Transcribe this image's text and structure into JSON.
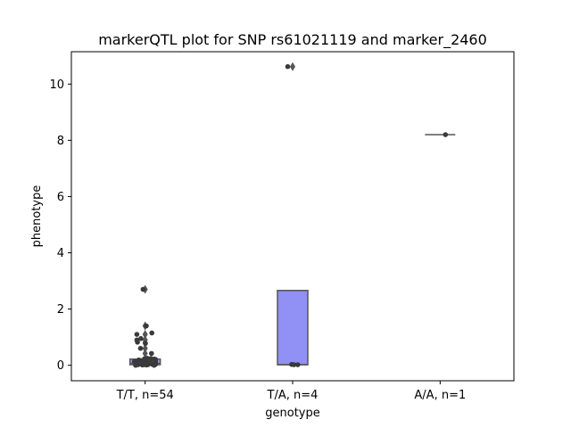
{
  "chart_data": {
    "type": "box",
    "title": "markerQTL plot for SNP rs61021119 and marker_2460",
    "xlabel": "genotype",
    "ylabel": "phenotype",
    "ylim": [
      -0.55,
      11.15
    ],
    "yticks": [
      0,
      2,
      4,
      6,
      8,
      10
    ],
    "grid": false,
    "legend": "none",
    "categories": [
      "T/T, n=54",
      "T/A, n=4",
      "A/A, n=1"
    ],
    "box_color": "#9090f5",
    "point_color": "#3a3a3a",
    "line_color": "#555555",
    "boxes": [
      {
        "q1": 0.02,
        "median": 0.07,
        "q3": 0.22,
        "whisker_low": 0.0,
        "whisker_high": 0.25,
        "outliers": [
          0.42,
          0.6,
          0.8,
          0.9,
          1.1,
          1.4,
          2.7
        ]
      },
      {
        "q1": 0.02,
        "median": 0.02,
        "q3": 2.66,
        "whisker_low": 0.02,
        "whisker_high": 2.66,
        "outliers": [
          10.62
        ]
      },
      {
        "q1": 8.2,
        "median": 8.2,
        "q3": 8.2,
        "whisker_low": 8.2,
        "whisker_high": 8.2,
        "outliers": []
      }
    ],
    "points": [
      {
        "values": [
          0.0,
          0.0,
          0.01,
          0.01,
          0.02,
          0.02,
          0.02,
          0.03,
          0.03,
          0.03,
          0.04,
          0.04,
          0.05,
          0.05,
          0.05,
          0.06,
          0.06,
          0.07,
          0.07,
          0.08,
          0.08,
          0.09,
          0.1,
          0.1,
          0.11,
          0.12,
          0.13,
          0.14,
          0.15,
          0.15,
          0.16,
          0.17,
          0.18,
          0.19,
          0.2,
          0.21,
          0.22,
          0.23,
          0.24,
          0.25,
          0.02,
          0.04,
          0.06,
          0.1,
          0.42,
          0.6,
          0.78,
          0.82,
          0.9,
          0.95,
          1.1,
          1.15,
          1.4,
          2.7
        ]
      },
      {
        "values": [
          0.02,
          0.02,
          0.03,
          10.62
        ]
      },
      {
        "values": [
          8.2
        ]
      }
    ]
  }
}
